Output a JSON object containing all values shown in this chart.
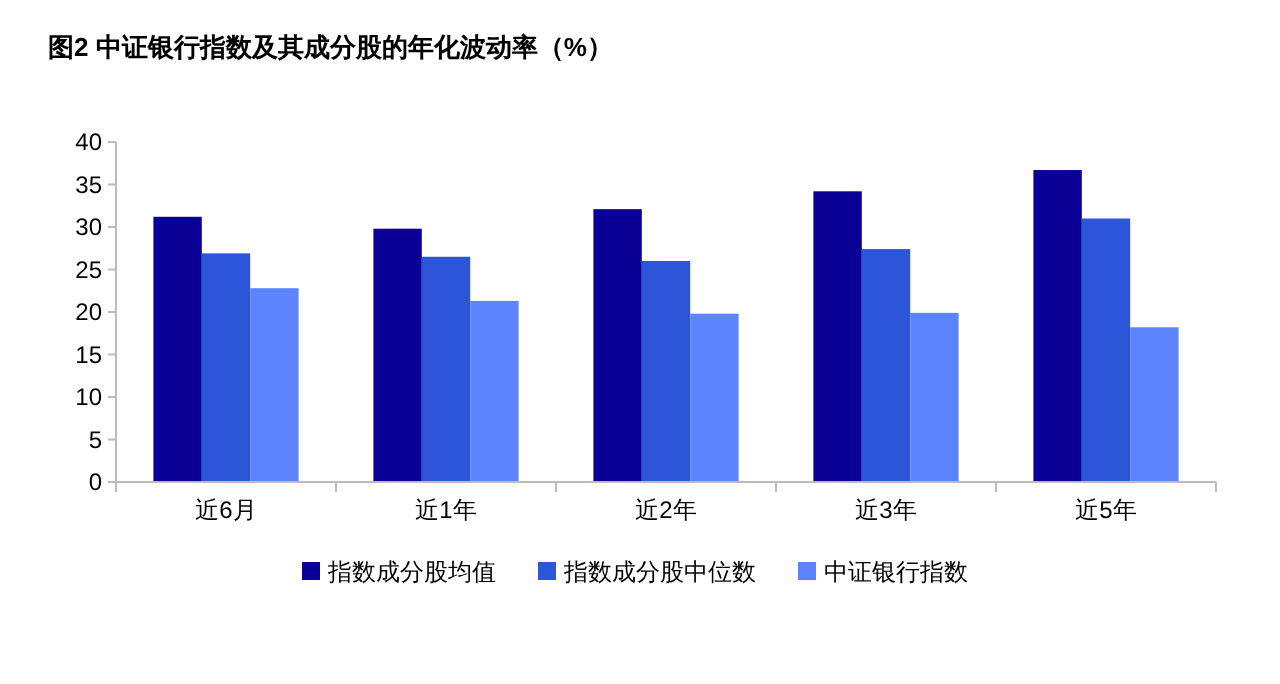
{
  "chart_data": {
    "type": "bar",
    "title": "图2  中证银行指数及其成分股的年化波动率（%）",
    "categories": [
      "近6月",
      "近1年",
      "近2年",
      "近3年",
      "近5年"
    ],
    "series": [
      {
        "name": "指数成分股均值",
        "color": "#0a0096",
        "values": [
          31.2,
          29.8,
          32.1,
          34.2,
          36.7
        ]
      },
      {
        "name": "指数成分股中位数",
        "color": "#2c55d8",
        "values": [
          26.9,
          26.5,
          26.0,
          27.4,
          31.0
        ]
      },
      {
        "name": "中证银行指数",
        "color": "#5b84fe",
        "values": [
          22.8,
          21.3,
          19.8,
          19.9,
          18.2
        ]
      }
    ],
    "ylim": [
      0,
      40
    ],
    "yticks": [
      0,
      5,
      10,
      15,
      20,
      25,
      30,
      35,
      40
    ],
    "grid": false,
    "legend": "bottom"
  }
}
